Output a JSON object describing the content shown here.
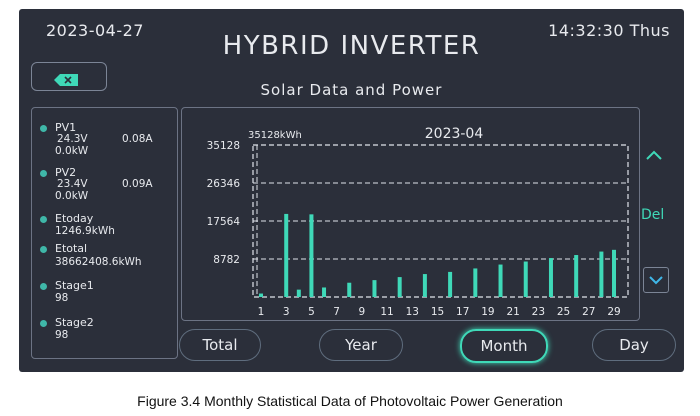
{
  "header": {
    "date": "2023-04-27",
    "title": "HYBRID INVERTER",
    "time": "14:32:30 Thus"
  },
  "page": {
    "subtitle": "Solar Data and Power"
  },
  "icons": {
    "back": "backspace-icon",
    "up": "chevron-up-icon",
    "down": "chevron-down-icon"
  },
  "left_panel": {
    "pv1": {
      "label": "PV1",
      "voltage": "24.3V",
      "current": "0.08A",
      "power": "0.0kW"
    },
    "pv2": {
      "label": "PV2",
      "voltage": "23.4V",
      "current": "0.09A",
      "power": "0.0kW"
    },
    "etoday": {
      "label": "Etoday",
      "value": "1246.9kWh"
    },
    "etotal": {
      "label": "Etotal",
      "value": "38662408.6kWh"
    },
    "stage1": {
      "label": "Stage1",
      "value": "98"
    },
    "stage2": {
      "label": "Stage2",
      "value": "98"
    }
  },
  "controls": {
    "del_label": "Del"
  },
  "tabs": [
    {
      "label": "Total",
      "active": false
    },
    {
      "label": "Year",
      "active": false
    },
    {
      "label": "Month",
      "active": true
    },
    {
      "label": "Day",
      "active": false
    }
  ],
  "caption": "Figure 3.4 Monthly Statistical Data of Photovoltaic Power Generation",
  "colors": {
    "accent": "#3fd9b8",
    "background": "#2b2f3a",
    "bar": "#3fd9b8"
  },
  "chart_data": {
    "type": "bar",
    "title": "2023-04",
    "unit_label": "35128kWh",
    "ylim": [
      0,
      35128
    ],
    "y_ticks": [
      35128,
      26346,
      17564,
      8782
    ],
    "y_tick_labels": [
      "35128",
      "26346",
      "17564",
      "8782"
    ],
    "x_tick_labels": [
      "1",
      "3",
      "5",
      "7",
      "9",
      "11",
      "13",
      "15",
      "17",
      "19",
      "21",
      "23",
      "25",
      "27",
      "29"
    ],
    "grid": true,
    "x": [
      1,
      2,
      3,
      4,
      5,
      6,
      7,
      8,
      9,
      10,
      11,
      12,
      13,
      14,
      15,
      16,
      17,
      18,
      19,
      20,
      21,
      22,
      23,
      24,
      25,
      26,
      27,
      28,
      29
    ],
    "values": [
      800,
      0,
      19200,
      1700,
      19100,
      2200,
      0,
      3300,
      0,
      3900,
      0,
      4600,
      0,
      5300,
      0,
      5800,
      0,
      6600,
      0,
      7500,
      0,
      8200,
      0,
      9000,
      0,
      9700,
      0,
      10500,
      10900
    ]
  }
}
